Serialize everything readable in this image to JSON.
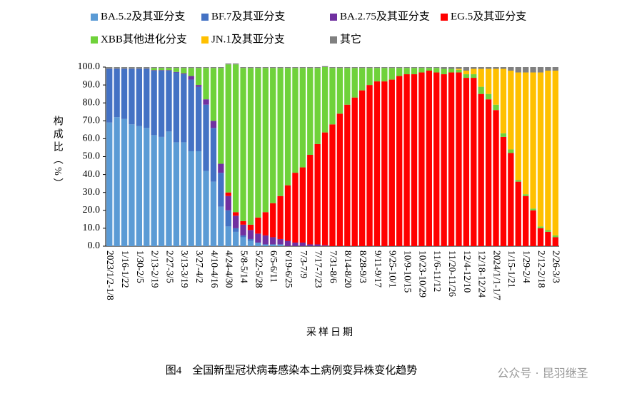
{
  "chart_data": {
    "type": "stacked_bar",
    "y_label": "构成比（%）",
    "x_label": "采样日期",
    "caption": "图4　全国新型冠状病毒感染本土病例变异株变化趋势",
    "watermark": "公众号 · 昆羽继圣",
    "legend": "top",
    "categories": [
      "2023/1/2-1/8",
      null,
      "1/16-1/22",
      null,
      "1/30-2/5",
      null,
      "2/13-2/19",
      null,
      "2/27-3/5",
      null,
      "3/13-3/19",
      null,
      "3/27-4/2",
      null,
      "4/10-4/16",
      null,
      "4/24-4/30",
      null,
      "5/8-5/14",
      null,
      "5/22-5/28",
      null,
      "6/5-6/11",
      null,
      "6/19-6/25",
      null,
      "7/3-7/9",
      null,
      "7/17-7/23",
      null,
      "7/31-8/6",
      null,
      "8/14-8/20",
      null,
      "8/28-9/3",
      null,
      "9/11-9/17",
      null,
      "9/25-10/1",
      null,
      "10/9-10/15",
      null,
      "10/23-10/29",
      null,
      "11/6-11/12",
      null,
      "11/20-11/26",
      null,
      "12/4-12/10",
      null,
      "12/18-12/24",
      null,
      "2024/1/1-1/7",
      null,
      "1/15-1/21",
      null,
      "1/29-2/4",
      null,
      "2/12-2/18",
      null,
      "2/26-3/3"
    ],
    "series": [
      {
        "name": "BA.5.2及其亚分支",
        "color": "#5b9bd5",
        "values": [
          69,
          72,
          71,
          68,
          67,
          66,
          62,
          61,
          64,
          58,
          58,
          53,
          53,
          42,
          36,
          22,
          11,
          8,
          5,
          3,
          2,
          1,
          1,
          1,
          0,
          0,
          0,
          0,
          0,
          0,
          0,
          0,
          0,
          0,
          0,
          0,
          0,
          0,
          0,
          0,
          0,
          0,
          0,
          0,
          0,
          0,
          0,
          0,
          0,
          0,
          0,
          0,
          0,
          0,
          0,
          0,
          0,
          0,
          0,
          0,
          0
        ]
      },
      {
        "name": "BF.7及其亚分支",
        "color": "#4472c4",
        "values": [
          30,
          27,
          28,
          31,
          32,
          33,
          36,
          37,
          34,
          39,
          38,
          40,
          36,
          37,
          30,
          19,
          9,
          2,
          1,
          1,
          0,
          0,
          0,
          0,
          0,
          0,
          0,
          0,
          0,
          0,
          0,
          0,
          0,
          0,
          0,
          0,
          0,
          0,
          0,
          0,
          0,
          0,
          0,
          0,
          0,
          0,
          0,
          0,
          0,
          0,
          0,
          0,
          0,
          0,
          0,
          0,
          0,
          0,
          0,
          0,
          0
        ]
      },
      {
        "name": "BA.2.75及其亚分支",
        "color": "#7030a0",
        "values": [
          0.3,
          0.3,
          0.3,
          0.3,
          0.3,
          0.3,
          0.3,
          0.3,
          0.3,
          0.3,
          0.5,
          2,
          1,
          3,
          4,
          5,
          8,
          7,
          6,
          5,
          5,
          5,
          4,
          3,
          3,
          2,
          2,
          1,
          1,
          0.5,
          0,
          0,
          0,
          0,
          0,
          0,
          0,
          0,
          0,
          0,
          0,
          0,
          0,
          0,
          0,
          0,
          0,
          0,
          0,
          0,
          0,
          0,
          0,
          0,
          0,
          0,
          0,
          0,
          0,
          0,
          0
        ]
      },
      {
        "name": "EG.5及其亚分支",
        "color": "#ff0000",
        "values": [
          0,
          0,
          0,
          0,
          0,
          0,
          0,
          0,
          0,
          0,
          0,
          0,
          0,
          0,
          0,
          0,
          2,
          2,
          2,
          3,
          9,
          13,
          19,
          24,
          31,
          39,
          42,
          50,
          56,
          63,
          68,
          74,
          79,
          83,
          87,
          90,
          92,
          92,
          93,
          95,
          96,
          96,
          97,
          98,
          97,
          96,
          97,
          97,
          94,
          94,
          85,
          82,
          76,
          61,
          52,
          36,
          28,
          20,
          10,
          8,
          5
        ]
      },
      {
        "name": "XBB其他进化分支",
        "color": "#6fd23a",
        "values": [
          0.2,
          0.2,
          0.2,
          0.2,
          0.2,
          0.2,
          1.2,
          1.2,
          1.2,
          2.2,
          3,
          4.5,
          9.5,
          17.5,
          29.5,
          53.5,
          71.5,
          82.5,
          85.5,
          87.5,
          83.5,
          80.5,
          75.5,
          71.5,
          65.5,
          58.5,
          55.5,
          48.5,
          42.5,
          36.5,
          31.5,
          25.5,
          20.5,
          16.5,
          12.5,
          9.5,
          7.5,
          7.5,
          6.5,
          4.5,
          3.5,
          3.5,
          2.5,
          1.5,
          2.5,
          3,
          2,
          1.5,
          2,
          2,
          4,
          3,
          3,
          2,
          2,
          1,
          1,
          1,
          1,
          1,
          1
        ]
      },
      {
        "name": "JN.1及其亚分支",
        "color": "#ffc000",
        "values": [
          0,
          0,
          0,
          0,
          0,
          0,
          0,
          0,
          0,
          0,
          0,
          0,
          0,
          0,
          0,
          0,
          0,
          0,
          0,
          0,
          0,
          0,
          0,
          0,
          0,
          0,
          0,
          0,
          0,
          0,
          0,
          0,
          0,
          0,
          0,
          0,
          0,
          0,
          0,
          0,
          0,
          0,
          0,
          0,
          0,
          0,
          0,
          0.5,
          2,
          3,
          10,
          14,
          20,
          36,
          44,
          60,
          68,
          76,
          86,
          89,
          92
        ]
      },
      {
        "name": "其它",
        "color": "#808080",
        "values": [
          0.5,
          0.5,
          0.5,
          0.5,
          0.5,
          0.5,
          0.5,
          0.5,
          0.5,
          0.5,
          0.5,
          0.5,
          0.5,
          0.5,
          0.5,
          0.5,
          0.5,
          0.5,
          0.5,
          0.5,
          0.5,
          0.5,
          0.5,
          0.5,
          0.5,
          0.5,
          0.5,
          0.5,
          0.5,
          0.5,
          0.5,
          0.5,
          0.5,
          0.5,
          0.5,
          0.5,
          0.5,
          0.5,
          0.5,
          0.5,
          0.5,
          0.5,
          0.5,
          0.5,
          0.5,
          1,
          1,
          1,
          2,
          1,
          1,
          1,
          1,
          1,
          2,
          3,
          3,
          3,
          3,
          2,
          2
        ]
      }
    ],
    "ylim": [
      0,
      100
    ],
    "yticks": [
      {
        "value": 0,
        "label": "0.0"
      },
      {
        "value": 10,
        "label": "10.0"
      },
      {
        "value": 20,
        "label": "20.0"
      },
      {
        "value": 30,
        "label": "30.0"
      },
      {
        "value": 40,
        "label": "40.0"
      },
      {
        "value": 50,
        "label": "50.0"
      },
      {
        "value": 60,
        "label": "60.0"
      },
      {
        "value": 70,
        "label": "70.0"
      },
      {
        "value": 80,
        "label": "80.0"
      },
      {
        "value": 90,
        "label": "90.0"
      },
      {
        "value": 100,
        "label": "100.0"
      }
    ]
  }
}
